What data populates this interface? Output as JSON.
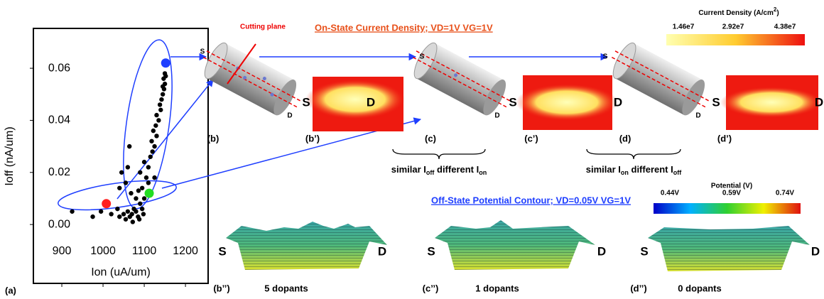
{
  "chart_data": {
    "type": "scatter",
    "xlabel": "Ion (uA/um)",
    "ylabel": "Ioff (nA/um)",
    "xlim": [
      831,
      1255
    ],
    "xticks": [
      900,
      1000,
      1100,
      1200
    ],
    "ylim": [
      -0.0226,
      0.0753
    ],
    "yticks": [
      {
        "value": 0,
        "label": "0.00"
      },
      0.02,
      0.04,
      0.06
    ],
    "series": [
      {
        "color": "#000000",
        "x": [
          925,
          975,
          995,
          1020,
          1035,
          1040,
          1050,
          1055,
          1060,
          1065,
          1070,
          1075,
          1080,
          1085,
          1090,
          1095,
          1100,
          1080,
          1068,
          1045,
          1040,
          1055,
          1060,
          1090,
          1100,
          1105,
          1110,
          1115,
          1120,
          1118,
          1125,
          1130,
          1122,
          1128,
          1135,
          1130,
          1140,
          1138,
          1142,
          1145,
          1148,
          1150,
          1147,
          1150,
          1152,
          1145,
          1125,
          1110,
          1095,
          1086,
          1064,
          1088,
          1098,
          1072
        ],
        "y": [
          0.005,
          0.003,
          0.005,
          0.004,
          0.006,
          0.003,
          0.004,
          0.002,
          0.005,
          0.003,
          0.004,
          0.006,
          0.005,
          0.003,
          0.008,
          0.006,
          0.01,
          0.01,
          0.012,
          0.02,
          0.014,
          0.016,
          0.022,
          0.02,
          0.024,
          0.018,
          0.022,
          0.026,
          0.028,
          0.032,
          0.03,
          0.034,
          0.036,
          0.038,
          0.04,
          0.042,
          0.044,
          0.046,
          0.048,
          0.05,
          0.052,
          0.054,
          0.056,
          0.058,
          0.057,
          0.053,
          0.018,
          0.016,
          0.014,
          0.013,
          0.03,
          0.002,
          0.004,
          0.001
        ]
      },
      {
        "color": "#ff2020",
        "x": [
          1008
        ],
        "y": [
          0.008
        ]
      },
      {
        "color": "#22dd22",
        "x": [
          1112
        ],
        "y": [
          0.012
        ]
      },
      {
        "color": "#1f3fff",
        "x": [
          1152
        ],
        "y": [
          0.062
        ]
      }
    ]
  },
  "figure": {
    "panel_a": "(a)",
    "cutting_plane": "Cutting plane",
    "on_state_title": "On-State Current Density; VD=1V VG=1V",
    "current_density_label": [
      "Current Density (A/cm",
      "2",
      ")"
    ],
    "current_density_ticks": [
      "1.46e7",
      "2.92e7",
      "4.38e7"
    ],
    "source": "S",
    "drain": "D",
    "top_panels": [
      "(b)",
      "(b’)",
      "(c)",
      "(c’)",
      "(d)",
      "(d’)"
    ],
    "compare_1": [
      "similar I",
      "off",
      "  different I",
      "on"
    ],
    "compare_2": [
      "similar I",
      "on",
      "  different I",
      "off"
    ],
    "off_state_title": "Off-State Potential Contour; VD=0.05V VG=1V",
    "potential_label": "Potential (V)",
    "potential_ticks": [
      "0.44V",
      "0.59V",
      "0.74V"
    ],
    "bottom_panels": [
      "(b’’)",
      "(c’’)",
      "(d’’)"
    ],
    "dopants": [
      "5 dopants",
      "1 dopants",
      "0 dopants"
    ]
  }
}
